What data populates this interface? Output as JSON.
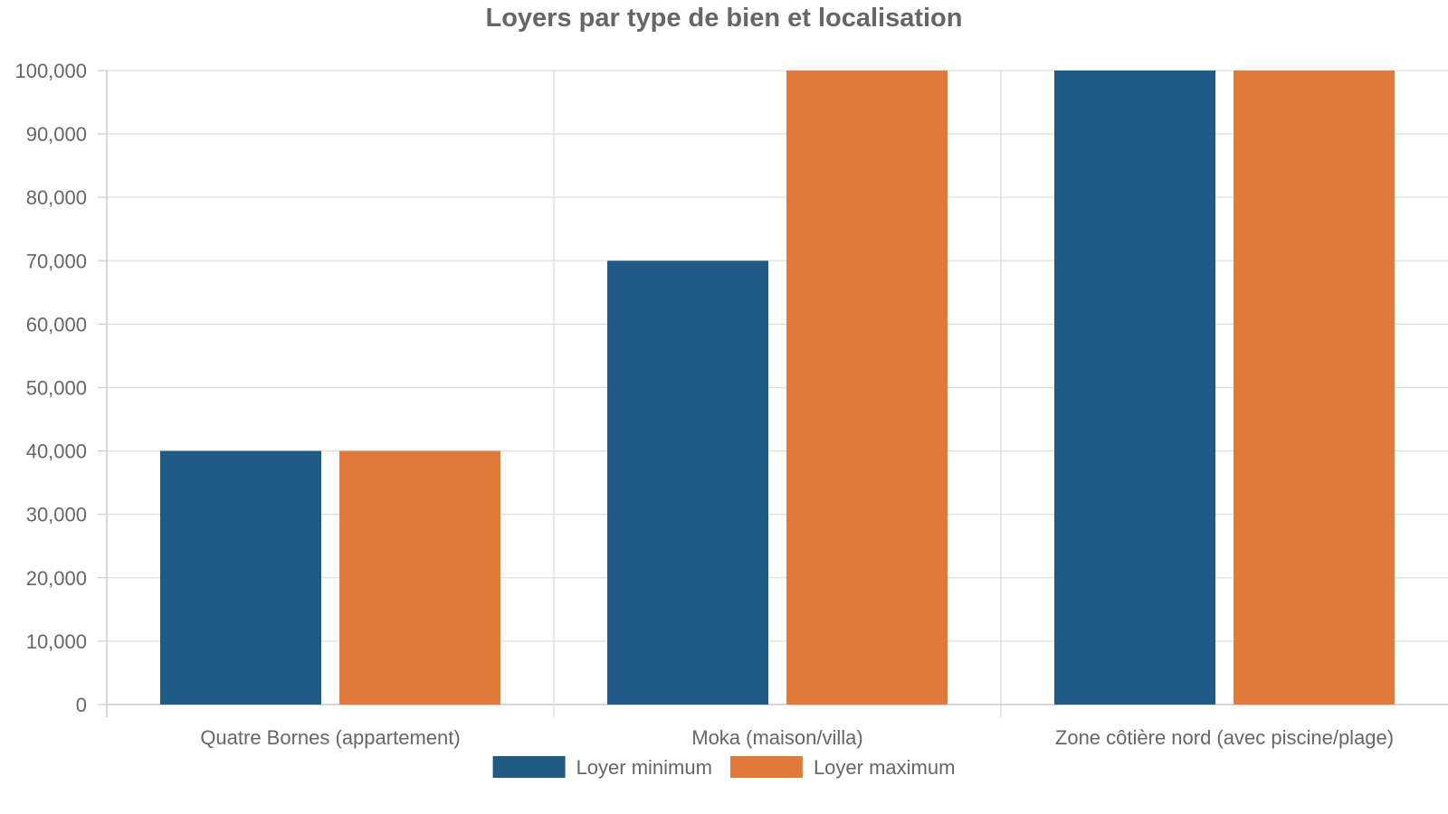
{
  "chart_data": {
    "type": "bar",
    "title": "Loyers par type de bien et localisation",
    "categories": [
      "Quatre Bornes (appartement)",
      "Moka (maison/villa)",
      "Zone côtière nord (avec piscine/plage)"
    ],
    "series": [
      {
        "name": "Loyer minimum",
        "color": "#1f5b85",
        "values": [
          40000,
          70000,
          100000
        ]
      },
      {
        "name": "Loyer maximum",
        "color": "#e07b3b",
        "values": [
          40000,
          100000,
          100000
        ]
      }
    ],
    "ylim": [
      0,
      100000
    ],
    "y_ticks": [
      "0",
      "10,000",
      "20,000",
      "30,000",
      "40,000",
      "50,000",
      "60,000",
      "70,000",
      "80,000",
      "90,000",
      "100,000"
    ],
    "xlabel": "",
    "ylabel": "",
    "grid": true,
    "legend_position": "bottom"
  }
}
